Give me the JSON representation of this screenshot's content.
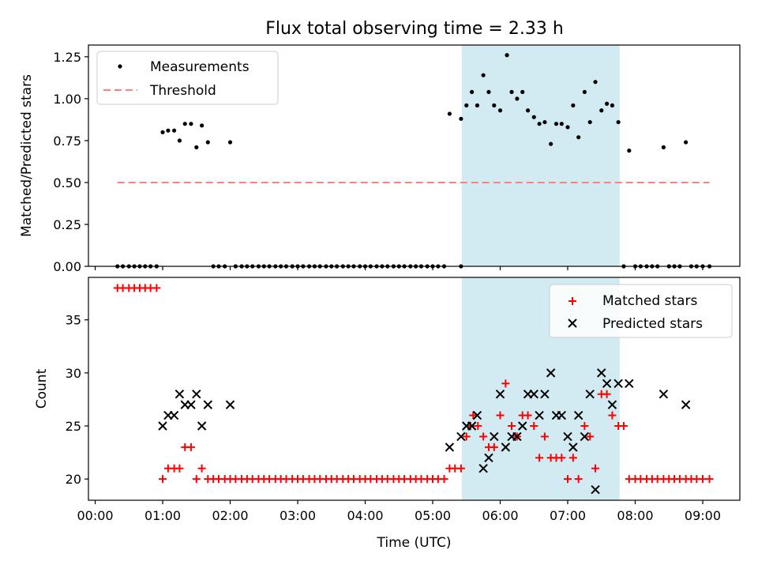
{
  "title": "Flux total observing time = 2.33 h",
  "colors": {
    "band": "#add8e6",
    "threshold": "#ff7f7f",
    "matched": "#ff0000",
    "predicted": "#000000",
    "measure": "#000000"
  },
  "chart_data": [
    {
      "type": "scatter",
      "ylabel": "Matched/Predicted stars",
      "xlim": [
        -0.1,
        9.55
      ],
      "ylim": [
        0,
        1.32
      ],
      "yticks": [
        0,
        0.25,
        0.5,
        0.75,
        1.0,
        1.25
      ],
      "ytick_labels": [
        "0.00",
        "0.25",
        "0.50",
        "0.75",
        "1.00",
        "1.25"
      ],
      "legend_placement": "upper left",
      "shaded_span": [
        5.43,
        7.77
      ],
      "threshold": {
        "name": "Threshold",
        "y": 0.5,
        "x_range": [
          0.33,
          9.1
        ]
      },
      "series": [
        {
          "name": "Measurements",
          "points": [
            [
              0.33,
              0
            ],
            [
              0.41,
              0
            ],
            [
              0.5,
              0
            ],
            [
              0.58,
              0
            ],
            [
              0.66,
              0
            ],
            [
              0.74,
              0
            ],
            [
              0.82,
              0
            ],
            [
              0.91,
              0
            ],
            [
              1.0,
              0.8
            ],
            [
              1.08,
              0.81
            ],
            [
              1.17,
              0.81
            ],
            [
              1.25,
              0.75
            ],
            [
              1.33,
              0.85
            ],
            [
              1.42,
              0.85
            ],
            [
              1.5,
              0.71
            ],
            [
              1.58,
              0.84
            ],
            [
              1.67,
              0.74
            ],
            [
              1.75,
              0
            ],
            [
              1.83,
              0
            ],
            [
              1.92,
              0
            ],
            [
              2.0,
              0.74
            ],
            [
              2.08,
              0
            ],
            [
              2.17,
              0
            ],
            [
              2.25,
              0
            ],
            [
              2.33,
              0
            ],
            [
              2.42,
              0
            ],
            [
              2.5,
              0
            ],
            [
              2.58,
              0
            ],
            [
              2.67,
              0
            ],
            [
              2.75,
              0
            ],
            [
              2.83,
              0
            ],
            [
              2.92,
              0
            ],
            [
              3.0,
              0
            ],
            [
              3.08,
              0
            ],
            [
              3.17,
              0
            ],
            [
              3.25,
              0
            ],
            [
              3.33,
              0
            ],
            [
              3.42,
              0
            ],
            [
              3.5,
              0
            ],
            [
              3.58,
              0
            ],
            [
              3.67,
              0
            ],
            [
              3.75,
              0
            ],
            [
              3.83,
              0
            ],
            [
              3.92,
              0
            ],
            [
              4.0,
              0
            ],
            [
              4.08,
              0
            ],
            [
              4.17,
              0
            ],
            [
              4.25,
              0
            ],
            [
              4.33,
              0
            ],
            [
              4.42,
              0
            ],
            [
              4.5,
              0
            ],
            [
              4.58,
              0
            ],
            [
              4.67,
              0
            ],
            [
              4.75,
              0
            ],
            [
              4.83,
              0
            ],
            [
              4.92,
              0
            ],
            [
              5.0,
              0
            ],
            [
              5.08,
              0
            ],
            [
              5.17,
              0
            ],
            [
              5.25,
              0.91
            ],
            [
              5.42,
              0
            ],
            [
              5.42,
              0.88
            ],
            [
              5.5,
              0.96
            ],
            [
              5.58,
              1.04
            ],
            [
              5.66,
              0.96
            ],
            [
              5.75,
              1.14
            ],
            [
              5.83,
              1.04
            ],
            [
              5.91,
              0.96
            ],
            [
              6.0,
              0.93
            ],
            [
              6.1,
              1.26
            ],
            [
              6.17,
              1.04
            ],
            [
              6.25,
              1.0
            ],
            [
              6.33,
              1.04
            ],
            [
              6.41,
              0.93
            ],
            [
              6.5,
              0.89
            ],
            [
              6.58,
              0.85
            ],
            [
              6.66,
              0.86
            ],
            [
              6.75,
              0.73
            ],
            [
              6.83,
              0.85
            ],
            [
              6.91,
              0.85
            ],
            [
              7.0,
              0.83
            ],
            [
              7.08,
              0.96
            ],
            [
              7.16,
              0.77
            ],
            [
              7.25,
              1.04
            ],
            [
              7.33,
              0.86
            ],
            [
              7.41,
              1.1
            ],
            [
              7.5,
              0.93
            ],
            [
              7.58,
              0.97
            ],
            [
              7.66,
              0.96
            ],
            [
              7.75,
              0.86
            ],
            [
              7.83,
              0
            ],
            [
              7.91,
              0.69
            ],
            [
              8.0,
              0
            ],
            [
              8.08,
              0
            ],
            [
              8.17,
              0
            ],
            [
              8.25,
              0
            ],
            [
              8.33,
              0
            ],
            [
              8.42,
              0.71
            ],
            [
              8.5,
              0
            ],
            [
              8.58,
              0
            ],
            [
              8.66,
              0
            ],
            [
              8.75,
              0.74
            ],
            [
              8.83,
              0
            ],
            [
              8.91,
              0
            ],
            [
              9.0,
              0
            ],
            [
              9.1,
              0
            ]
          ]
        }
      ]
    },
    {
      "type": "scatter",
      "xlabel": "Time (UTC)",
      "ylabel": "Count",
      "xlim": [
        -0.1,
        9.55
      ],
      "ylim": [
        18,
        39
      ],
      "yticks": [
        20,
        25,
        30,
        35
      ],
      "ytick_labels": [
        "20",
        "25",
        "30",
        "35"
      ],
      "xticks": [
        0,
        1,
        2,
        3,
        4,
        5,
        6,
        7,
        8,
        9
      ],
      "xtick_labels": [
        "00:00",
        "01:00",
        "02:00",
        "03:00",
        "04:00",
        "05:00",
        "06:00",
        "07:00",
        "08:00",
        "09:00"
      ],
      "legend_placement": "upper right",
      "shaded_span": [
        5.43,
        7.77
      ],
      "series": [
        {
          "name": "Matched stars",
          "points": [
            [
              0.33,
              38
            ],
            [
              0.41,
              38
            ],
            [
              0.5,
              38
            ],
            [
              0.58,
              38
            ],
            [
              0.66,
              38
            ],
            [
              0.74,
              38
            ],
            [
              0.82,
              38
            ],
            [
              0.91,
              38
            ],
            [
              1.0,
              20
            ],
            [
              1.08,
              21
            ],
            [
              1.17,
              21
            ],
            [
              1.25,
              21
            ],
            [
              1.33,
              23
            ],
            [
              1.42,
              23
            ],
            [
              1.5,
              20
            ],
            [
              1.58,
              21
            ],
            [
              1.67,
              20
            ],
            [
              1.75,
              20
            ],
            [
              1.83,
              20
            ],
            [
              1.92,
              20
            ],
            [
              2.0,
              20
            ],
            [
              2.08,
              20
            ],
            [
              2.17,
              20
            ],
            [
              2.25,
              20
            ],
            [
              2.33,
              20
            ],
            [
              2.42,
              20
            ],
            [
              2.5,
              20
            ],
            [
              2.58,
              20
            ],
            [
              2.67,
              20
            ],
            [
              2.75,
              20
            ],
            [
              2.83,
              20
            ],
            [
              2.92,
              20
            ],
            [
              3.0,
              20
            ],
            [
              3.08,
              20
            ],
            [
              3.17,
              20
            ],
            [
              3.25,
              20
            ],
            [
              3.33,
              20
            ],
            [
              3.42,
              20
            ],
            [
              3.5,
              20
            ],
            [
              3.58,
              20
            ],
            [
              3.67,
              20
            ],
            [
              3.75,
              20
            ],
            [
              3.83,
              20
            ],
            [
              3.92,
              20
            ],
            [
              4.0,
              20
            ],
            [
              4.08,
              20
            ],
            [
              4.17,
              20
            ],
            [
              4.25,
              20
            ],
            [
              4.33,
              20
            ],
            [
              4.42,
              20
            ],
            [
              4.5,
              20
            ],
            [
              4.58,
              20
            ],
            [
              4.67,
              20
            ],
            [
              4.75,
              20
            ],
            [
              4.83,
              20
            ],
            [
              4.92,
              20
            ],
            [
              5.0,
              20
            ],
            [
              5.08,
              20
            ],
            [
              5.17,
              20
            ],
            [
              5.25,
              21
            ],
            [
              5.33,
              21
            ],
            [
              5.42,
              21
            ],
            [
              5.5,
              24
            ],
            [
              5.56,
              25
            ],
            [
              5.6,
              26
            ],
            [
              5.67,
              25
            ],
            [
              5.75,
              24
            ],
            [
              5.83,
              23
            ],
            [
              5.91,
              23
            ],
            [
              6.0,
              26
            ],
            [
              6.08,
              29
            ],
            [
              6.17,
              25
            ],
            [
              6.25,
              24
            ],
            [
              6.33,
              26
            ],
            [
              6.41,
              26
            ],
            [
              6.5,
              25
            ],
            [
              6.58,
              22
            ],
            [
              6.66,
              24
            ],
            [
              6.75,
              22
            ],
            [
              6.83,
              22
            ],
            [
              6.91,
              22
            ],
            [
              7.0,
              20
            ],
            [
              7.08,
              22
            ],
            [
              7.16,
              20
            ],
            [
              7.25,
              25
            ],
            [
              7.33,
              24
            ],
            [
              7.41,
              21
            ],
            [
              7.5,
              28
            ],
            [
              7.58,
              28
            ],
            [
              7.66,
              26
            ],
            [
              7.75,
              25
            ],
            [
              7.83,
              25
            ],
            [
              7.91,
              20
            ],
            [
              8.0,
              20
            ],
            [
              8.08,
              20
            ],
            [
              8.17,
              20
            ],
            [
              8.25,
              20
            ],
            [
              8.33,
              20
            ],
            [
              8.42,
              20
            ],
            [
              8.5,
              20
            ],
            [
              8.58,
              20
            ],
            [
              8.66,
              20
            ],
            [
              8.75,
              20
            ],
            [
              8.83,
              20
            ],
            [
              8.91,
              20
            ],
            [
              9.0,
              20
            ],
            [
              9.1,
              20
            ]
          ]
        },
        {
          "name": "Predicted stars",
          "points": [
            [
              1.0,
              25
            ],
            [
              1.08,
              26
            ],
            [
              1.17,
              26
            ],
            [
              1.25,
              28
            ],
            [
              1.33,
              27
            ],
            [
              1.42,
              27
            ],
            [
              1.5,
              28
            ],
            [
              1.58,
              25
            ],
            [
              1.67,
              27
            ],
            [
              2.0,
              27
            ],
            [
              5.25,
              23
            ],
            [
              5.42,
              24
            ],
            [
              5.5,
              25
            ],
            [
              5.58,
              25
            ],
            [
              5.66,
              26
            ],
            [
              5.75,
              21
            ],
            [
              5.83,
              22
            ],
            [
              5.91,
              24
            ],
            [
              6.0,
              28
            ],
            [
              6.08,
              23
            ],
            [
              6.17,
              24
            ],
            [
              6.25,
              24
            ],
            [
              6.33,
              25
            ],
            [
              6.41,
              28
            ],
            [
              6.5,
              28
            ],
            [
              6.58,
              26
            ],
            [
              6.66,
              28
            ],
            [
              6.75,
              30
            ],
            [
              6.83,
              26
            ],
            [
              6.91,
              26
            ],
            [
              7.0,
              24
            ],
            [
              7.08,
              23
            ],
            [
              7.16,
              26
            ],
            [
              7.25,
              24
            ],
            [
              7.33,
              28
            ],
            [
              7.41,
              19
            ],
            [
              7.5,
              30
            ],
            [
              7.58,
              29
            ],
            [
              7.66,
              27
            ],
            [
              7.75,
              29
            ],
            [
              7.91,
              29
            ],
            [
              8.42,
              28
            ],
            [
              8.75,
              27
            ]
          ]
        }
      ]
    }
  ]
}
